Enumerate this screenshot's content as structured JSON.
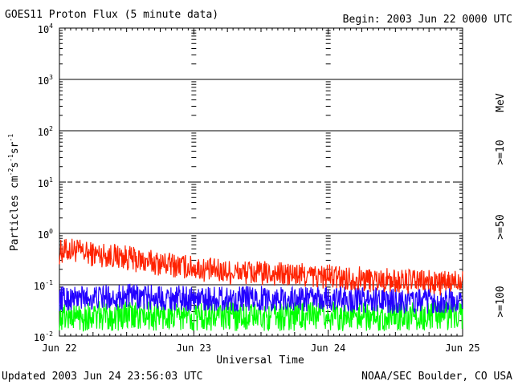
{
  "chart_data": {
    "type": "line",
    "title": "GOES11 Proton Flux (5 minute data)",
    "begin_label": "Begin: 2003 Jun 22 0000 UTC",
    "xlabel": "Universal Time",
    "ylabel": "Particles cm-2s-1sr-1",
    "ylabel_parts": {
      "main": "Particles cm",
      "e1": "-2",
      "s": "s",
      "e2": "-1",
      "sr": "sr",
      "e3": "-1"
    },
    "yscale": "log",
    "ylim": [
      0.01,
      10000
    ],
    "y_ticks": [
      {
        "base": "10",
        "exp": "-2",
        "value": 0.01
      },
      {
        "base": "10",
        "exp": "-1",
        "value": 0.1
      },
      {
        "base": "10",
        "exp": "0",
        "value": 1
      },
      {
        "base": "10",
        "exp": "1",
        "value": 10
      },
      {
        "base": "10",
        "exp": "2",
        "value": 100
      },
      {
        "base": "10",
        "exp": "3",
        "value": 1000
      },
      {
        "base": "10",
        "exp": "4",
        "value": 10000
      }
    ],
    "x_ticks": [
      "Jun 22",
      "Jun 23",
      "Jun 24",
      "Jun 25"
    ],
    "xlim_days": [
      0,
      3
    ],
    "threshold_lines": [
      {
        "value": 0.1,
        "style": "solid"
      },
      {
        "value": 1,
        "style": "solid"
      },
      {
        "value": 10,
        "style": "dashed"
      },
      {
        "value": 100,
        "style": "solid"
      },
      {
        "value": 1000,
        "style": "solid"
      }
    ],
    "legend_unit": "MeV",
    "series": [
      {
        "name": ">=10",
        "color": "#ff2200",
        "x_days": [
          0.0,
          0.1,
          0.2,
          0.3,
          0.4,
          0.5,
          0.6,
          0.7,
          0.8,
          0.9,
          1.0,
          1.1,
          1.2,
          1.3,
          1.4,
          1.5,
          1.6,
          1.7,
          1.8,
          1.9,
          2.0,
          2.1,
          2.2,
          2.3,
          2.4,
          2.5,
          2.6,
          2.7,
          2.8,
          2.9,
          3.0
        ],
        "values": [
          0.45,
          0.5,
          0.42,
          0.4,
          0.38,
          0.35,
          0.3,
          0.28,
          0.26,
          0.24,
          0.22,
          0.2,
          0.19,
          0.18,
          0.18,
          0.17,
          0.17,
          0.16,
          0.16,
          0.15,
          0.15,
          0.14,
          0.14,
          0.13,
          0.13,
          0.12,
          0.12,
          0.12,
          0.11,
          0.11,
          0.14
        ],
        "noise_low": 0.55,
        "noise_high": 1.7
      },
      {
        "name": ">=50",
        "color": "#2200ff",
        "x_days": [
          0.0,
          0.5,
          1.0,
          1.5,
          2.0,
          2.5,
          3.0
        ],
        "values": [
          0.05,
          0.055,
          0.05,
          0.05,
          0.05,
          0.045,
          0.045
        ],
        "noise_low": 0.6,
        "noise_high": 1.9
      },
      {
        "name": ">=100",
        "color": "#00ff00",
        "x_days": [
          0.0,
          0.5,
          1.0,
          1.5,
          2.0,
          2.5,
          3.0
        ],
        "values": [
          0.025,
          0.025,
          0.025,
          0.025,
          0.025,
          0.025,
          0.025
        ],
        "noise_low": 0.5,
        "noise_high": 1.9
      }
    ]
  },
  "footer": {
    "updated": "Updated 2003 Jun 24 23:56:03 UTC",
    "credit": "NOAA/SEC Boulder, CO USA"
  }
}
